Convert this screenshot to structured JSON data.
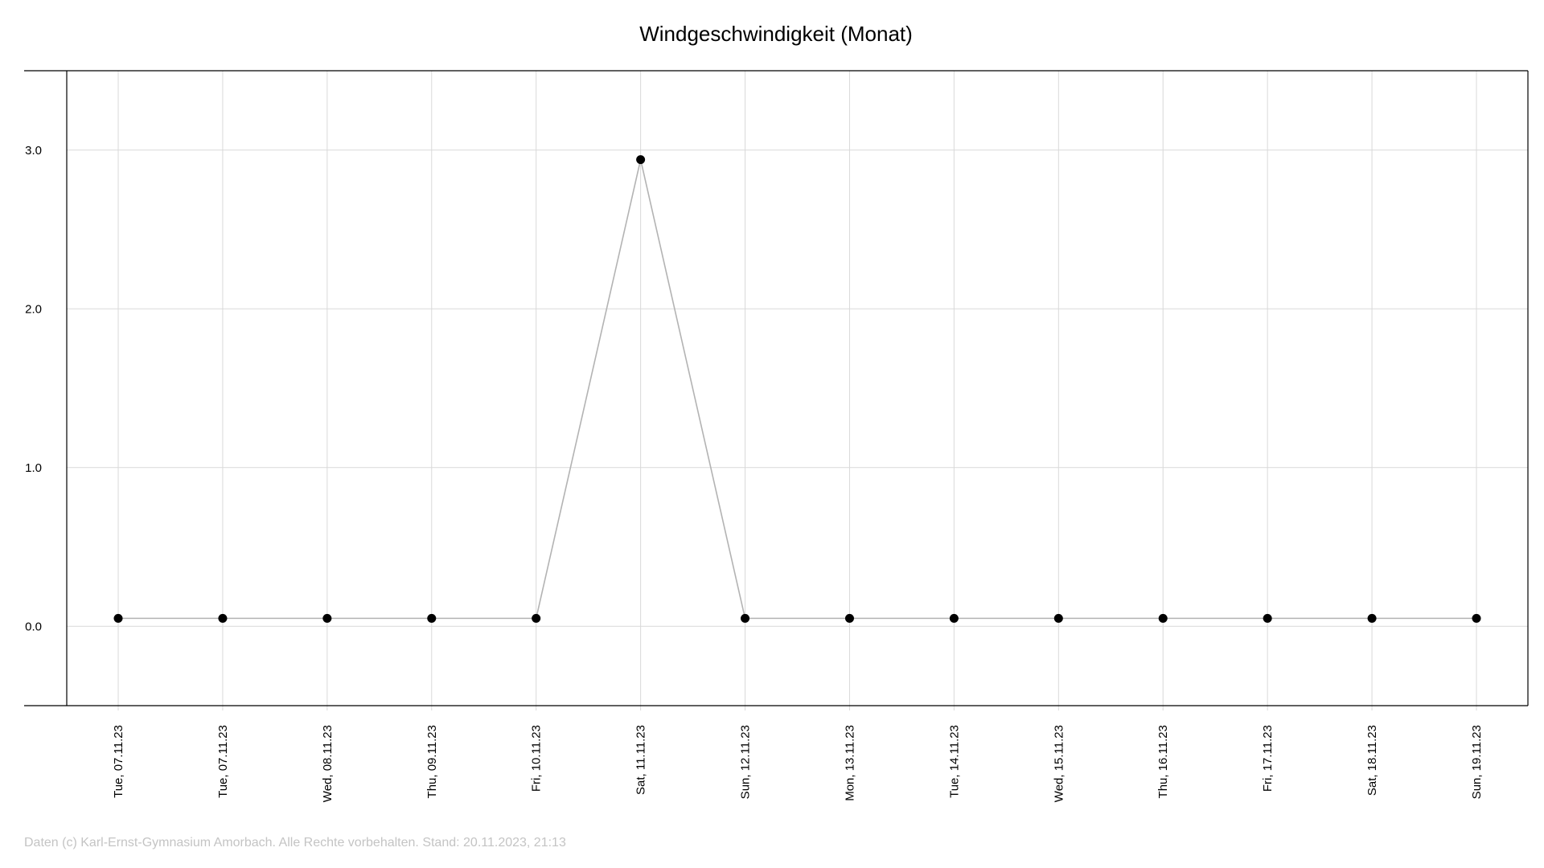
{
  "chart_data": {
    "type": "line",
    "title": "Windgeschwindigkeit (Monat)",
    "xlabel": "",
    "ylabel": "",
    "categories": [
      "Tue, 07.11.23",
      "Tue, 07.11.23",
      "Wed, 08.11.23",
      "Thu, 09.11.23",
      "Fri, 10.11.23",
      "Sat, 11.11.23",
      "Sun, 12.11.23",
      "Mon, 13.11.23",
      "Tue, 14.11.23",
      "Wed, 15.11.23",
      "Thu, 16.11.23",
      "Fri, 17.11.23",
      "Sat, 18.11.23",
      "Sun, 19.11.23"
    ],
    "series": [
      {
        "values": [
          0.05,
          0.05,
          0.05,
          0.05,
          0.05,
          2.94,
          0.05,
          0.05,
          0.05,
          0.05,
          0.05,
          0.05,
          0.05,
          0.05
        ]
      }
    ],
    "ylim": [
      -0.5,
      3.5
    ],
    "yticks": [
      "0.0",
      "1.0",
      "2.0",
      "3.0"
    ],
    "grid": true,
    "legend": "none",
    "colors": {
      "line": "#b3b3b3",
      "marker": "#000000",
      "grid": "#d9d9d9",
      "axis": "#000000"
    }
  },
  "footer": {
    "text": "Daten (c) Karl-Ernst-Gymnasium Amorbach. Alle Rechte vorbehalten. Stand: 20.11.2023, 21:13"
  }
}
